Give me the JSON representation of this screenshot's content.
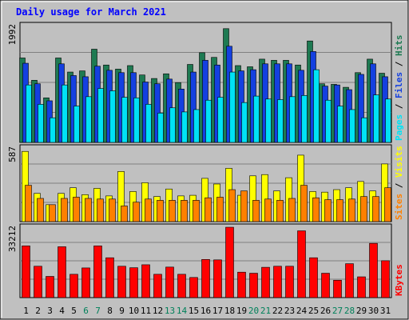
{
  "chart_data": {
    "type": "bar",
    "title": "Daily usage for March 2021",
    "categories": [
      "1",
      "2",
      "3",
      "4",
      "5",
      "6",
      "7",
      "8",
      "9",
      "10",
      "11",
      "12",
      "13",
      "14",
      "15",
      "16",
      "17",
      "18",
      "19",
      "20",
      "21",
      "22",
      "23",
      "24",
      "25",
      "26",
      "27",
      "28",
      "29",
      "30",
      "31"
    ],
    "weekend_days": [
      "6",
      "7",
      "13",
      "14",
      "20",
      "21",
      "27",
      "28"
    ],
    "panels": [
      {
        "id": "hits-files-pages",
        "max_label": "1992",
        "ymax": 1992,
        "labels": [
          "Pages",
          "Files",
          "Hits"
        ],
        "series": [
          {
            "name": "Hits",
            "color": "#1e7a52",
            "values": [
              1440,
              1060,
              760,
              1440,
              1200,
              1220,
              1590,
              1320,
              1250,
              1310,
              1150,
              1090,
              1170,
              1020,
              1330,
              1530,
              1450,
              1940,
              1310,
              1290,
              1420,
              1400,
              1400,
              1320,
              1730,
              1000,
              990,
              940,
              1190,
              1420,
              1180
            ]
          },
          {
            "name": "Files",
            "color": "#1440e0",
            "values": [
              1350,
              1000,
              710,
              1340,
              1140,
              1120,
              1300,
              1230,
              1190,
              1190,
              1030,
              1000,
              1080,
              910,
              1200,
              1400,
              1320,
              1640,
              1220,
              1240,
              1340,
              1340,
              1340,
              1230,
              1550,
              960,
              980,
              900,
              1160,
              1340,
              1120
            ]
          },
          {
            "name": "Pages",
            "color": "#00e2f5",
            "values": [
              980,
              650,
              420,
              980,
              620,
              780,
              920,
              880,
              770,
              760,
              650,
              500,
              590,
              520,
              560,
              720,
              770,
              1200,
              680,
              790,
              740,
              730,
              780,
              800,
              1240,
              720,
              620,
              560,
              420,
              810,
              740
            ]
          }
        ]
      },
      {
        "id": "visits-sites",
        "max_label": "587",
        "ymax": 587,
        "labels": [
          "Sites",
          "Visits"
        ],
        "series": [
          {
            "name": "Visits",
            "color": "#ffff00",
            "values": [
              560,
              225,
              135,
              225,
              270,
              215,
              265,
              205,
              400,
              240,
              310,
              200,
              260,
              205,
              210,
              345,
              300,
              425,
              210,
              365,
              375,
              245,
              350,
              530,
              240,
              235,
              255,
              270,
              320,
              245,
              460
            ]
          },
          {
            "name": "Sites",
            "color": "#ff8000",
            "values": [
              290,
              185,
              135,
              185,
              195,
              185,
              180,
              180,
              125,
              155,
              180,
              170,
              170,
              170,
              170,
              190,
              195,
              255,
              245,
              170,
              180,
              170,
              185,
              290,
              190,
              175,
              175,
              180,
              200,
              200,
              270
            ]
          }
        ]
      },
      {
        "id": "kbytes",
        "max_label": "33212",
        "ymax": 33212,
        "labels": [
          "KBytes"
        ],
        "series": [
          {
            "name": "KBytes",
            "color": "#ff0000",
            "values": [
              24400,
              14800,
              10000,
              24000,
              11000,
              14000,
              24400,
              18800,
              14800,
              14100,
              15500,
              11000,
              14400,
              11000,
              9500,
              18000,
              17800,
              33200,
              12000,
              11500,
              14300,
              14800,
              14800,
              31500,
              18800,
              11500,
              8200,
              16000,
              9800,
              25600,
              17400
            ]
          }
        ]
      }
    ]
  }
}
